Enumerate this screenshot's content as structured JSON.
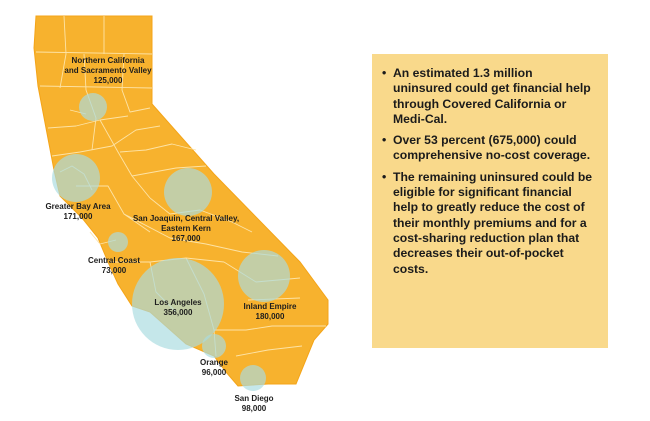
{
  "colors": {
    "state_fill": "#f7b22e",
    "county_lines": "#fde3a6",
    "bubble": "#a9dbe0",
    "info_box_bg": "#f9d98b"
  },
  "regions": [
    {
      "id": "northern-california",
      "name_lines": [
        "Northern California",
        "and Sacramento Valley"
      ],
      "count": "125,000"
    },
    {
      "id": "greater-bay-area",
      "name_lines": [
        "Greater Bay Area"
      ],
      "count": "171,000"
    },
    {
      "id": "san-joaquin",
      "name_lines": [
        "San Joaquin, Central Valley,",
        "Eastern  Kern"
      ],
      "count": "167,000"
    },
    {
      "id": "central-coast",
      "name_lines": [
        "Central Coast"
      ],
      "count": "73,000"
    },
    {
      "id": "los-angeles",
      "name_lines": [
        "Los Angeles"
      ],
      "count": "356,000"
    },
    {
      "id": "inland-empire",
      "name_lines": [
        "Inland Empire"
      ],
      "count": "180,000"
    },
    {
      "id": "orange",
      "name_lines": [
        "Orange"
      ],
      "count": "96,000"
    },
    {
      "id": "san-diego",
      "name_lines": [
        "San Diego"
      ],
      "count": "98,000"
    }
  ],
  "info_box": {
    "bullet_symbol": "•",
    "bullets": [
      "An estimated 1.3 million uninsured could get financial help through Covered California or Medi-Cal.",
      "Over 53 percent (675,000) could comprehensive no-cost coverage.",
      "The remaining uninsured could be eligible for significant financial help to greatly reduce the cost of their monthly premiums and for a cost-sharing reduction plan that decreases their out-of-pocket costs."
    ]
  }
}
